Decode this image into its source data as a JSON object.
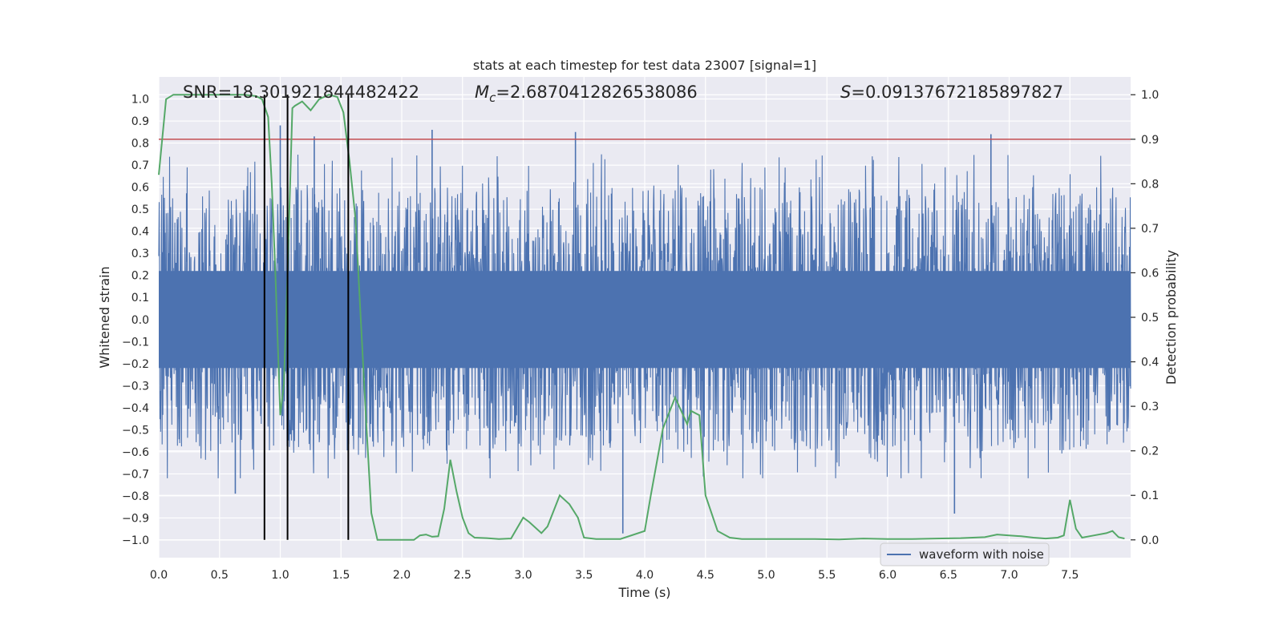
{
  "chart_data": {
    "type": "line",
    "title": "stats at each timestep for test data 23007 [signal=1]",
    "xlabel": "Time (s)",
    "ylabel_left": "Whitened strain",
    "ylabel_right": "Detection probability",
    "xlim": [
      0.0,
      8.0
    ],
    "ylim_left": [
      -1.08,
      1.1
    ],
    "ylim_right": [
      -0.04,
      1.04
    ],
    "x_ticks": [
      0.0,
      0.5,
      1.0,
      1.5,
      2.0,
      2.5,
      3.0,
      3.5,
      4.0,
      4.5,
      5.0,
      5.5,
      6.0,
      6.5,
      7.0,
      7.5
    ],
    "x_tick_labels": [
      "0.0",
      "0.5",
      "1.0",
      "1.5",
      "2.0",
      "2.5",
      "3.0",
      "3.5",
      "4.0",
      "4.5",
      "5.0",
      "5.5",
      "6.0",
      "6.5",
      "7.0",
      "7.5"
    ],
    "y_left_ticks": [
      -1.0,
      -0.9,
      -0.8,
      -0.7,
      -0.6,
      -0.5,
      -0.4,
      -0.3,
      -0.2,
      -0.1,
      0.0,
      0.1,
      0.2,
      0.3,
      0.4,
      0.5,
      0.6,
      0.7,
      0.8,
      0.9,
      1.0
    ],
    "y_left_tick_labels": [
      "−1.0",
      "−0.9",
      "−0.8",
      "−0.7",
      "−0.6",
      "−0.5",
      "−0.4",
      "−0.3",
      "−0.2",
      "−0.1",
      "0.0",
      "0.1",
      "0.2",
      "0.3",
      "0.4",
      "0.5",
      "0.6",
      "0.7",
      "0.8",
      "0.9",
      "1.0"
    ],
    "y_right_ticks": [
      0.0,
      0.1,
      0.2,
      0.3,
      0.4,
      0.5,
      0.6,
      0.7,
      0.8,
      0.9,
      1.0
    ],
    "y_right_tick_labels": [
      "0.0",
      "0.1",
      "0.2",
      "0.3",
      "0.4",
      "0.5",
      "0.6",
      "0.7",
      "0.8",
      "0.9",
      "1.0"
    ],
    "grid": true,
    "annotations": {
      "snr": "SNR=18.301921844482422",
      "mc_symbol": "M",
      "mc_sub": "c",
      "mc_value": "=2.6870412826538086",
      "s_symbol": "S",
      "s_value": "=0.09137672185897827"
    },
    "threshold": {
      "value": 0.9,
      "axis": "right",
      "color": "#c44e52"
    },
    "vertical_lines": [
      0.87,
      1.06,
      1.56
    ],
    "legend": {
      "placement": "bottom-right",
      "entries": [
        "waveform with noise"
      ]
    },
    "series": [
      {
        "name": "waveform with noise",
        "axis": "left",
        "color": "#4c72b0",
        "style": "dense noise samples",
        "x_range": [
          0.0,
          8.0
        ],
        "envelope_typical": [
          -0.5,
          0.55
        ],
        "peak_samples": [
          {
            "x": 0.87,
            "y": 1.0
          },
          {
            "x": 1.0,
            "y": 0.88
          },
          {
            "x": 1.28,
            "y": 0.83
          },
          {
            "x": 2.25,
            "y": 0.86
          },
          {
            "x": 3.43,
            "y": 0.85
          },
          {
            "x": 6.85,
            "y": 0.84
          },
          {
            "x": 3.82,
            "y": -0.97
          },
          {
            "x": 0.63,
            "y": -0.79
          },
          {
            "x": 6.55,
            "y": -0.88
          }
        ]
      },
      {
        "name": "",
        "axis": "right",
        "color": "#55a868",
        "x": [
          0.0,
          0.06,
          0.12,
          0.2,
          0.4,
          0.6,
          0.7,
          0.8,
          0.85,
          0.9,
          0.93,
          0.96,
          1.0,
          1.03,
          1.06,
          1.1,
          1.12,
          1.18,
          1.25,
          1.32,
          1.4,
          1.47,
          1.52,
          1.57,
          1.62,
          1.7,
          1.75,
          1.8,
          1.9,
          2.0,
          2.1,
          2.15,
          2.2,
          2.25,
          2.3,
          2.35,
          2.4,
          2.45,
          2.5,
          2.55,
          2.6,
          2.7,
          2.8,
          2.9,
          3.0,
          3.05,
          3.15,
          3.2,
          3.3,
          3.38,
          3.45,
          3.5,
          3.6,
          3.8,
          4.0,
          4.05,
          4.15,
          4.25,
          4.35,
          4.38,
          4.45,
          4.5,
          4.6,
          4.7,
          4.8,
          5.0,
          5.2,
          5.4,
          5.6,
          5.8,
          6.0,
          6.2,
          6.4,
          6.6,
          6.8,
          6.9,
          7.0,
          7.1,
          7.2,
          7.3,
          7.4,
          7.45,
          7.5,
          7.55,
          7.6,
          7.7,
          7.8,
          7.85,
          7.9,
          7.95
        ],
        "y": [
          0.82,
          0.99,
          1.0,
          1.0,
          1.0,
          1.0,
          1.0,
          0.997,
          0.99,
          0.95,
          0.8,
          0.6,
          0.28,
          0.35,
          0.6,
          0.97,
          0.975,
          0.985,
          0.965,
          0.99,
          1.0,
          0.995,
          0.96,
          0.85,
          0.72,
          0.3,
          0.06,
          0.0,
          0.0,
          0.0,
          0.0,
          0.01,
          0.012,
          0.007,
          0.008,
          0.07,
          0.18,
          0.11,
          0.05,
          0.015,
          0.005,
          0.004,
          0.002,
          0.003,
          0.05,
          0.04,
          0.015,
          0.03,
          0.1,
          0.08,
          0.05,
          0.005,
          0.002,
          0.002,
          0.02,
          0.1,
          0.25,
          0.32,
          0.26,
          0.29,
          0.28,
          0.1,
          0.02,
          0.005,
          0.002,
          0.002,
          0.002,
          0.002,
          0.001,
          0.003,
          0.002,
          0.002,
          0.003,
          0.004,
          0.006,
          0.012,
          0.01,
          0.008,
          0.005,
          0.003,
          0.005,
          0.01,
          0.09,
          0.025,
          0.005,
          0.01,
          0.015,
          0.02,
          0.006,
          0.003
        ]
      }
    ]
  }
}
